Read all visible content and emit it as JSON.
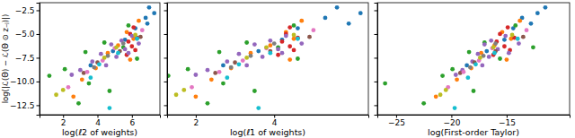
{
  "chart_data": [
    {
      "type": "scatter",
      "x_label": "log(ℓ2 of weights)",
      "y_label": "log(|ℒ(Θ) − ℒ(Θ ⊙ z₋ⱼ)|)",
      "xlim": [
        0.63,
        7.63
      ],
      "ylim": [
        -13.5,
        -1.7
      ],
      "xticks": [
        2,
        4,
        6
      ],
      "yticks": [
        {
          "value": -12.5,
          "label": "−12.5"
        },
        {
          "value": -10.0,
          "label": "−10.0"
        },
        {
          "value": -7.5,
          "label": "−7.5"
        },
        {
          "value": -5.0,
          "label": "−5.0"
        },
        {
          "value": -2.5,
          "label": "−2.5"
        }
      ],
      "series": [
        {
          "color": "#1f77b4",
          "x": [
            7.0,
            7.3,
            6.8,
            6.9,
            6.2,
            5.6,
            4.9,
            3.6
          ],
          "values": [
            -2.2,
            -2.8,
            -3.3,
            -3.9,
            -4.4,
            -5.6,
            -6.8,
            -8.3
          ]
        },
        {
          "color": "#ff7f0e",
          "x": [
            6.4,
            5.7,
            6.1,
            5.2,
            4.6,
            5.9,
            3.9,
            3.1,
            2.6
          ],
          "values": [
            -3.6,
            -4.8,
            -5.5,
            -6.2,
            -7.0,
            -7.7,
            -8.6,
            -9.8,
            -11.6
          ]
        },
        {
          "color": "#2ca02c",
          "x": [
            5.8,
            4.4,
            3.3,
            6.3,
            2.1,
            1.2,
            3.5,
            4.7,
            2.9,
            5.5
          ],
          "values": [
            -4.1,
            -5.9,
            -6.9,
            -7.6,
            -8.7,
            -9.4,
            -10.2,
            -11.0,
            -12.3,
            -6.4
          ]
        },
        {
          "color": "#d62728",
          "x": [
            6.1,
            5.9,
            6.3,
            5.8,
            6.0,
            6.2,
            5.7
          ],
          "values": [
            -4.3,
            -5.0,
            -5.4,
            -5.8,
            -6.3,
            -6.7,
            -7.2
          ]
        },
        {
          "color": "#9467bd",
          "x": [
            6.0,
            5.4,
            4.8,
            5.6,
            4.2,
            5.1,
            3.7,
            4.5,
            3.0,
            2.5,
            6.4,
            5.8
          ],
          "values": [
            -5.2,
            -5.7,
            -6.1,
            -6.6,
            -7.1,
            -7.4,
            -7.9,
            -8.3,
            -8.8,
            -9.3,
            -6.0,
            -7.0
          ]
        },
        {
          "color": "#8c564b",
          "x": [
            6.5,
            5.3,
            4.0,
            3.2
          ],
          "values": [
            -5.3,
            -6.8,
            -8.0,
            -9.1
          ]
        },
        {
          "color": "#e377c2",
          "x": [
            6.6,
            5.0,
            4.3,
            3.4,
            2.3
          ],
          "values": [
            -4.6,
            -6.5,
            -7.8,
            -9.0,
            -10.6
          ]
        },
        {
          "color": "#7f7f7f",
          "x": [
            5.5,
            4.6,
            3.8
          ],
          "values": [
            -6.0,
            -7.3,
            -8.5
          ]
        },
        {
          "color": "#bcbd22",
          "x": [
            6.2,
            5.1,
            4.4,
            2.0,
            1.6
          ],
          "values": [
            -5.1,
            -6.4,
            -7.5,
            -10.9,
            -11.4
          ]
        },
        {
          "color": "#17becf",
          "x": [
            6.3,
            5.2,
            4.1,
            3.6,
            4.7
          ],
          "values": [
            -5.5,
            -7.0,
            -8.2,
            -9.6,
            -12.8
          ]
        }
      ]
    },
    {
      "type": "scatter",
      "x_label": "log(ℓ1 of weights)",
      "tick_labels": "x",
      "xlim": [
        1.27,
        6.4
      ],
      "ylim": [
        -13.5,
        -1.7
      ],
      "xticks": [
        2,
        4
      ],
      "yticks": [
        -12.5,
        -10.0,
        -7.5,
        -5.0,
        -2.5
      ],
      "series": [
        {
          "color": "#1f77b4",
          "x": [
            5.6,
            6.2,
            5.3,
            5.9,
            4.6,
            4.2,
            3.6,
            2.7
          ],
          "values": [
            -2.2,
            -2.8,
            -3.3,
            -3.9,
            -4.4,
            -5.6,
            -6.8,
            -8.3
          ]
        },
        {
          "color": "#ff7f0e",
          "x": [
            4.7,
            4.3,
            4.5,
            3.9,
            3.4,
            4.4,
            2.9,
            2.4,
            2.0
          ],
          "values": [
            -3.6,
            -4.8,
            -5.5,
            -6.2,
            -7.0,
            -7.7,
            -8.6,
            -9.8,
            -11.6
          ]
        },
        {
          "color": "#2ca02c",
          "x": [
            4.5,
            3.3,
            2.6,
            4.6,
            1.8,
            1.3,
            2.7,
            3.5,
            2.3,
            4.1
          ],
          "values": [
            -4.1,
            -5.9,
            -6.9,
            -7.6,
            -8.7,
            -9.4,
            -10.2,
            -11.0,
            -12.3,
            -6.4
          ]
        },
        {
          "color": "#d62728",
          "x": [
            4.4,
            4.3,
            4.6,
            4.2,
            4.4,
            4.5,
            4.1
          ],
          "values": [
            -4.3,
            -5.0,
            -5.4,
            -5.8,
            -6.3,
            -6.7,
            -7.2
          ]
        },
        {
          "color": "#9467bd",
          "x": [
            4.3,
            3.9,
            3.5,
            4.1,
            3.1,
            3.7,
            2.8,
            3.3,
            2.3,
            2.0,
            4.7,
            4.2
          ],
          "values": [
            -5.2,
            -5.7,
            -6.1,
            -6.6,
            -7.1,
            -7.4,
            -7.9,
            -8.3,
            -8.8,
            -9.3,
            -6.0,
            -7.0
          ]
        },
        {
          "color": "#8c564b",
          "x": [
            4.9,
            3.9,
            3.0,
            2.5
          ],
          "values": [
            -5.3,
            -6.8,
            -8.0,
            -9.1
          ]
        },
        {
          "color": "#e377c2",
          "x": [
            5.0,
            3.8,
            3.2,
            2.6,
            1.9
          ],
          "values": [
            -4.6,
            -6.5,
            -7.8,
            -9.0,
            -10.6
          ]
        },
        {
          "color": "#7f7f7f",
          "x": [
            4.0,
            3.4,
            2.9
          ],
          "values": [
            -6.0,
            -7.3,
            -8.5
          ]
        },
        {
          "color": "#bcbd22",
          "x": [
            4.5,
            3.8,
            3.3,
            1.7,
            1.5
          ],
          "values": [
            -5.1,
            -6.4,
            -7.5,
            -10.9,
            -11.4
          ]
        },
        {
          "color": "#17becf",
          "x": [
            4.6,
            3.9,
            3.1,
            2.8,
            3.6
          ],
          "values": [
            -5.5,
            -7.0,
            -8.2,
            -9.6,
            -12.8
          ]
        }
      ]
    },
    {
      "type": "scatter",
      "x_label": "log(First-order Taylor)",
      "tick_labels": "x",
      "xlim": [
        -26.7,
        -9.3
      ],
      "ylim": [
        -13.5,
        -1.7
      ],
      "xticks": [
        {
          "value": -25,
          "label": "−25"
        },
        {
          "value": -20,
          "label": "−20"
        },
        {
          "value": -15,
          "label": "−15"
        }
      ],
      "yticks": [
        -12.5,
        -10.0,
        -7.5,
        -5.0,
        -2.5
      ],
      "series": [
        {
          "color": "#1f77b4",
          "x": [
            -11.5,
            -12.2,
            -13.6,
            -12.8,
            -14.4,
            -15.2,
            -16.8,
            -18.6
          ],
          "values": [
            -2.2,
            -2.8,
            -3.3,
            -3.9,
            -4.4,
            -5.6,
            -6.8,
            -8.3
          ]
        },
        {
          "color": "#ff7f0e",
          "x": [
            -13.8,
            -15.4,
            -14.6,
            -16.1,
            -17.3,
            -15.0,
            -18.2,
            -19.5,
            -21.4
          ],
          "values": [
            -3.6,
            -4.8,
            -5.5,
            -6.2,
            -7.0,
            -7.7,
            -8.6,
            -9.8,
            -11.6
          ]
        },
        {
          "color": "#2ca02c",
          "x": [
            -14.2,
            -17.0,
            -18.4,
            -15.6,
            -19.9,
            -20.8,
            -26.0,
            -18.0,
            -22.5,
            -12.6
          ],
          "values": [
            -4.1,
            -5.9,
            -6.9,
            -7.6,
            -8.7,
            -9.4,
            -10.2,
            -11.0,
            -12.3,
            -6.4
          ]
        },
        {
          "color": "#d62728",
          "x": [
            -14.9,
            -15.6,
            -14.3,
            -15.9,
            -15.2,
            -14.7,
            -16.2
          ],
          "values": [
            -4.3,
            -5.0,
            -5.4,
            -5.8,
            -6.3,
            -6.7,
            -7.2
          ]
        },
        {
          "color": "#9467bd",
          "x": [
            -15.1,
            -16.4,
            -17.0,
            -15.8,
            -17.6,
            -16.6,
            -18.1,
            -17.2,
            -19.0,
            -19.6,
            -13.9,
            -14.8
          ],
          "values": [
            -5.2,
            -5.7,
            -6.1,
            -6.6,
            -7.1,
            -7.4,
            -7.9,
            -8.3,
            -8.8,
            -9.3,
            -6.0,
            -7.0
          ]
        },
        {
          "color": "#8c564b",
          "x": [
            -13.5,
            -16.0,
            -17.9,
            -19.2
          ],
          "values": [
            -5.3,
            -6.8,
            -8.0,
            -9.1
          ]
        },
        {
          "color": "#e377c2",
          "x": [
            -13.2,
            -16.3,
            -17.5,
            -18.9,
            -20.3
          ],
          "values": [
            -4.6,
            -6.5,
            -7.8,
            -9.0,
            -10.6
          ]
        },
        {
          "color": "#7f7f7f",
          "x": [
            -16.0,
            -17.1,
            -18.3
          ],
          "values": [
            -6.0,
            -7.3,
            -8.5
          ]
        },
        {
          "color": "#bcbd22",
          "x": [
            -14.5,
            -16.2,
            -17.4,
            -20.5,
            -21.0
          ],
          "values": [
            -5.1,
            -6.4,
            -7.5,
            -10.9,
            -11.4
          ]
        },
        {
          "color": "#17becf",
          "x": [
            -14.0,
            -16.1,
            -17.8,
            -18.5,
            -19.7
          ],
          "values": [
            -5.5,
            -7.0,
            -8.2,
            -9.6,
            -12.8
          ]
        }
      ]
    }
  ]
}
